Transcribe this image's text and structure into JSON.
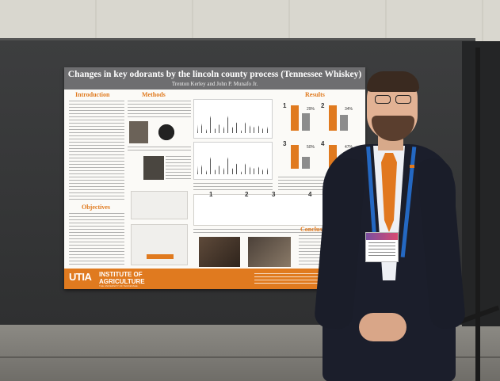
{
  "poster": {
    "title": "Changes in key odorants by the lincoln county process (Tennessee Whiskey)",
    "authors": "Trenton Kerley and John P. Munafo Jr.",
    "sections": {
      "introduction": "Introduction",
      "methods": "Methods",
      "results": "Results",
      "objectives": "Objectives",
      "conclusions": "Conclusions"
    },
    "result_charts": [
      {
        "num": "1",
        "pct": "29%"
      },
      {
        "num": "2",
        "pct": "34%"
      },
      {
        "num": "3",
        "pct": "50%"
      },
      {
        "num": "4",
        "pct": "47%"
      }
    ],
    "footer": {
      "logo": "UTIA",
      "inst_line1": "INSTITUTE OF",
      "inst_line2": "AGRICULTURE",
      "inst_line3": "THE UNIVERSITY OF TENNESSEE"
    }
  },
  "colors": {
    "accent_orange": "#e07a1f",
    "header_gray": "#6e6e70",
    "board": "#2f3031"
  }
}
